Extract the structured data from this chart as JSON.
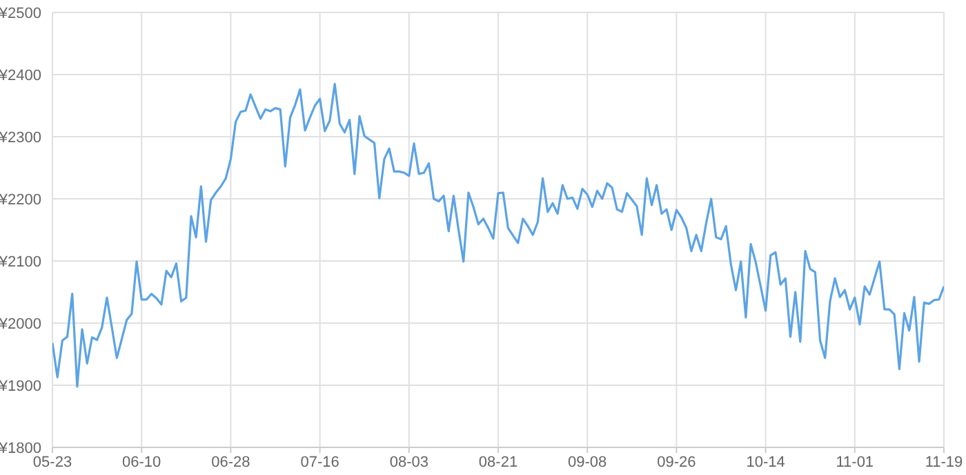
{
  "chart_data": {
    "type": "line",
    "x": [
      "--05-23",
      "--05-24",
      "--05-25",
      "--05-26",
      "--05-27",
      "--05-28",
      "--05-29",
      "--05-30",
      "--05-31",
      "--06-01",
      "--06-02",
      "--06-03",
      "--06-04",
      "--06-05",
      "--06-07",
      "--06-08",
      "--06-09",
      "--06-10",
      "--06-11",
      "--06-12",
      "--06-13",
      "--06-14",
      "--06-15",
      "--06-16",
      "--06-17",
      "--06-18",
      "--06-19",
      "--06-20",
      "--06-21",
      "--06-22",
      "--06-23",
      "--06-24",
      "--06-25",
      "--06-26",
      "--06-27",
      "--06-28",
      "--06-29",
      "--06-30",
      "--07-01",
      "--07-02",
      "--07-04",
      "--07-05",
      "--07-06",
      "--07-07",
      "--07-08",
      "--07-09",
      "--07-10",
      "--07-11",
      "--07-12",
      "--07-13",
      "--07-14",
      "--07-15",
      "--07-16",
      "--07-17",
      "--07-18",
      "--07-19",
      "--07-20",
      "--07-21",
      "--07-22",
      "--07-23",
      "--07-24",
      "--07-25",
      "--07-27",
      "--07-28",
      "--07-29",
      "--07-30",
      "--07-31",
      "--08-01",
      "--08-02",
      "--08-03",
      "--08-04",
      "--08-05",
      "--08-06",
      "--08-07",
      "--08-08",
      "--08-09",
      "--08-10",
      "--08-11",
      "--08-12",
      "--08-13",
      "--08-14",
      "--08-15",
      "--08-16",
      "--08-17",
      "--08-18",
      "--08-19",
      "--08-20",
      "--08-21",
      "--08-22",
      "--08-23",
      "--08-25",
      "--08-26",
      "--08-27",
      "--08-28",
      "--08-29",
      "--08-30",
      "--08-31",
      "--09-01",
      "--09-02",
      "--09-03",
      "--09-04",
      "--09-05",
      "--09-06",
      "--09-07",
      "--09-08",
      "--09-09",
      "--09-10",
      "--09-11",
      "--09-12",
      "--09-13",
      "--09-14",
      "--09-15",
      "--09-16",
      "--09-18",
      "--09-19",
      "--09-20",
      "--09-21",
      "--09-22",
      "--09-23",
      "--09-24",
      "--09-25",
      "--09-26",
      "--09-27",
      "--09-28",
      "--09-29",
      "--09-30",
      "--10-01",
      "--10-02",
      "--10-03",
      "--10-04",
      "--10-05",
      "--10-06",
      "--10-07",
      "--10-08",
      "--10-09",
      "--10-10",
      "--10-11",
      "--10-12",
      "--10-14",
      "--10-15",
      "--10-16",
      "--10-17",
      "--10-18",
      "--10-19",
      "--10-20",
      "--10-21",
      "--10-22",
      "--10-23",
      "--10-24",
      "--10-25",
      "--10-26",
      "--10-27",
      "--10-28",
      "--10-29",
      "--10-30",
      "--10-31",
      "--11-01",
      "--11-02",
      "--11-03",
      "--11-04",
      "--11-06",
      "--11-07",
      "--11-08",
      "--11-09",
      "--11-10",
      "--11-11",
      "--11-12",
      "--11-13",
      "--11-14",
      "--11-15",
      "--11-16",
      "--11-17",
      "--11-18",
      "--11-19"
    ],
    "series": [
      {
        "color": "#5ba3e6",
        "values": [
          1968,
          1913,
          1972,
          1978,
          2047,
          1898,
          1990,
          1935,
          1977,
          1973,
          1993,
          2041,
          1993,
          1944,
          2005,
          2015,
          2099,
          2038,
          2038,
          2047,
          2040,
          2030,
          2084,
          2074,
          2096,
          2035,
          2041,
          2172,
          2138,
          2220,
          2131,
          2198,
          2210,
          2220,
          2233,
          2264,
          2324,
          2340,
          2342,
          2368,
          2329,
          2344,
          2341,
          2346,
          2344,
          2252,
          2331,
          2351,
          2376,
          2310,
          2331,
          2350,
          2361,
          2309,
          2326,
          2385,
          2321,
          2307,
          2327,
          2240,
          2333,
          2301,
          2290,
          2201,
          2264,
          2281,
          2244,
          2244,
          2242,
          2237,
          2289,
          2240,
          2242,
          2257,
          2200,
          2196,
          2205,
          2148,
          2205,
          2150,
          2099,
          2210,
          2187,
          2159,
          2168,
          2153,
          2136,
          2209,
          2210,
          2153,
          2129,
          2168,
          2156,
          2142,
          2163,
          2233,
          2179,
          2193,
          2176,
          2222,
          2200,
          2202,
          2184,
          2216,
          2207,
          2187,
          2213,
          2200,
          2225,
          2218,
          2183,
          2179,
          2209,
          2188,
          2142,
          2233,
          2190,
          2222,
          2176,
          2183,
          2150,
          2182,
          2170,
          2153,
          2116,
          2142,
          2116,
          2161,
          2200,
          2138,
          2135,
          2156,
          2094,
          2053,
          2099,
          2009,
          2127,
          2098,
          2020,
          2109,
          2114,
          2062,
          2072,
          1978,
          2050,
          1970,
          2116,
          2087,
          2082,
          1972,
          1944,
          2035,
          2072,
          2042,
          2053,
          2022,
          2041,
          1998,
          2059,
          2046,
          2099,
          2022,
          2022,
          2014,
          1926,
          2016,
          1988,
          2042,
          1938,
          2033,
          2031,
          2037,
          2038,
          2059
        ]
      }
    ],
    "xlim": [
      "--05-23",
      "--11-19"
    ],
    "xticks": [
      {
        "value": "--05-23",
        "label": "05-23"
      },
      {
        "value": "--06-10",
        "label": "06-10"
      },
      {
        "value": "--06-28",
        "label": "06-28"
      },
      {
        "value": "--07-16",
        "label": "07-16"
      },
      {
        "value": "--08-03",
        "label": "08-03"
      },
      {
        "value": "--08-21",
        "label": "08-21"
      },
      {
        "value": "--09-08",
        "label": "09-08"
      },
      {
        "value": "--09-26",
        "label": "09-26"
      },
      {
        "value": "--10-14",
        "label": "10-14"
      },
      {
        "value": "--11-01",
        "label": "11-01"
      },
      {
        "value": "--11-19",
        "label": "11-19"
      }
    ],
    "ylim": [
      1800,
      2500
    ],
    "yticks": [
      {
        "value": 1800,
        "label": "¥1800"
      },
      {
        "value": 1900,
        "label": "¥1900"
      },
      {
        "value": 2000,
        "label": "¥2000"
      },
      {
        "value": 2100,
        "label": "¥2100"
      },
      {
        "value": 2200,
        "label": "¥2200"
      },
      {
        "value": 2300,
        "label": "¥2300"
      },
      {
        "value": 2400,
        "label": "¥2400"
      },
      {
        "value": 2500,
        "label": "¥2500"
      }
    ],
    "grid": true,
    "legend": false,
    "marker": "none",
    "line_style": "solid"
  }
}
